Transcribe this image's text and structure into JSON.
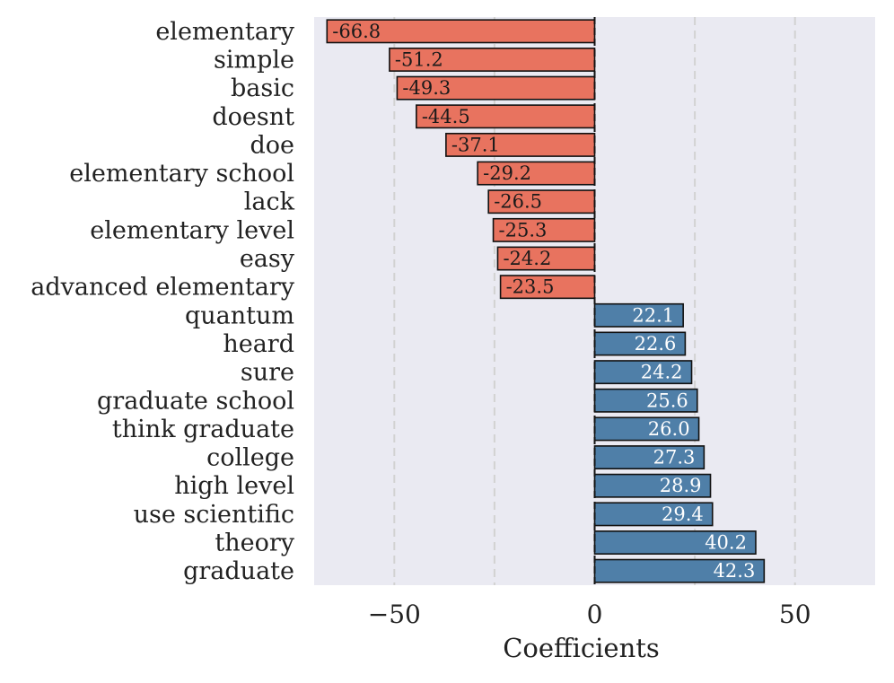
{
  "chart_data": {
    "type": "bar",
    "orientation": "horizontal",
    "title": "",
    "xlabel": "Coefficients",
    "ylabel": "",
    "xlim": [
      -70,
      70
    ],
    "xticks": [
      -50,
      0,
      50
    ],
    "xtick_labels": [
      "−50",
      "0",
      "50"
    ],
    "grid": "vertical dashed",
    "categories": [
      "elementary",
      "simple",
      "basic",
      "doesnt",
      "doe",
      "elementary school",
      "lack",
      "elementary level",
      "easy",
      "advanced elementary",
      "quantum",
      "heard",
      "sure",
      "graduate school",
      "think graduate",
      "college",
      "high level",
      "use scientific",
      "theory",
      "graduate"
    ],
    "values": [
      -66.8,
      -51.2,
      -49.3,
      -44.5,
      -37.1,
      -29.2,
      -26.5,
      -25.3,
      -24.2,
      -23.5,
      22.1,
      22.6,
      24.2,
      25.6,
      26.0,
      27.3,
      28.9,
      29.4,
      40.2,
      42.3
    ],
    "value_labels": [
      "-66.8",
      "-51.2",
      "-49.3",
      "-44.5",
      "-37.1",
      "-29.2",
      "-26.5",
      "-25.3",
      "-24.2",
      "-23.5",
      "22.1",
      "22.6",
      "24.2",
      "25.6",
      "26.0",
      "27.3",
      "28.9",
      "29.4",
      "40.2",
      "42.3"
    ],
    "colors": {
      "negative": "#E8735F",
      "positive": "#4F7FA8",
      "background": "#EAEAF2",
      "grid": "#D2D2D2",
      "negative_label": "#1A1A1A",
      "positive_label": "#FFFFFF"
    }
  }
}
